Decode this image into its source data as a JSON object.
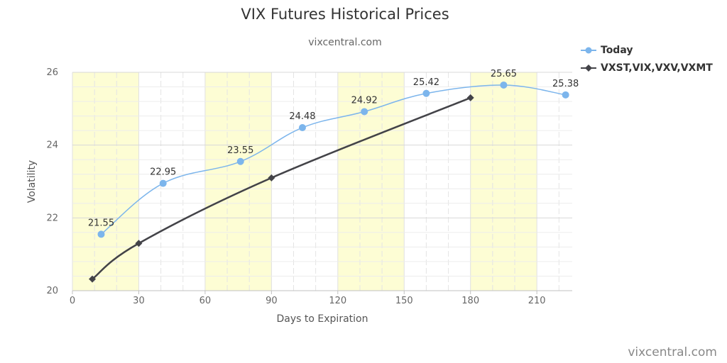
{
  "chart_data": {
    "type": "line",
    "title": "VIX Futures Historical Prices",
    "subtitle": "vixcentral.com",
    "xlabel": "Days to Expiration",
    "ylabel": "Volatility",
    "xlim": [
      0,
      226
    ],
    "ylim": [
      20,
      26
    ],
    "x_ticks": [
      0,
      30,
      60,
      90,
      120,
      150,
      180,
      210
    ],
    "y_ticks": [
      20,
      22,
      24,
      26
    ],
    "shaded_x_bands": [
      [
        0,
        30
      ],
      [
        60,
        90
      ],
      [
        120,
        150
      ],
      [
        180,
        210
      ]
    ],
    "shade_color": "#fdfdd4",
    "grid": true,
    "legend_placement": "top-right",
    "series": [
      {
        "name": "Today",
        "color": "#7cb5ec",
        "marker": "circle",
        "smooth": true,
        "show_data_labels": true,
        "x": [
          13,
          41,
          76,
          104,
          132,
          160,
          195,
          223
        ],
        "values": [
          21.55,
          22.95,
          23.55,
          24.48,
          24.92,
          25.42,
          25.65,
          25.38
        ],
        "labels": [
          "21.55",
          "22.95",
          "23.55",
          "24.48",
          "24.92",
          "25.42",
          "25.65",
          "25.38"
        ]
      },
      {
        "name": "VXST,VIX,VXV,VXMT",
        "color": "#434348",
        "marker": "diamond",
        "smooth": true,
        "show_data_labels": false,
        "x": [
          9,
          30,
          90,
          180
        ],
        "values": [
          20.32,
          21.3,
          23.1,
          25.3
        ]
      }
    ]
  },
  "credit": "vixcentral.com"
}
